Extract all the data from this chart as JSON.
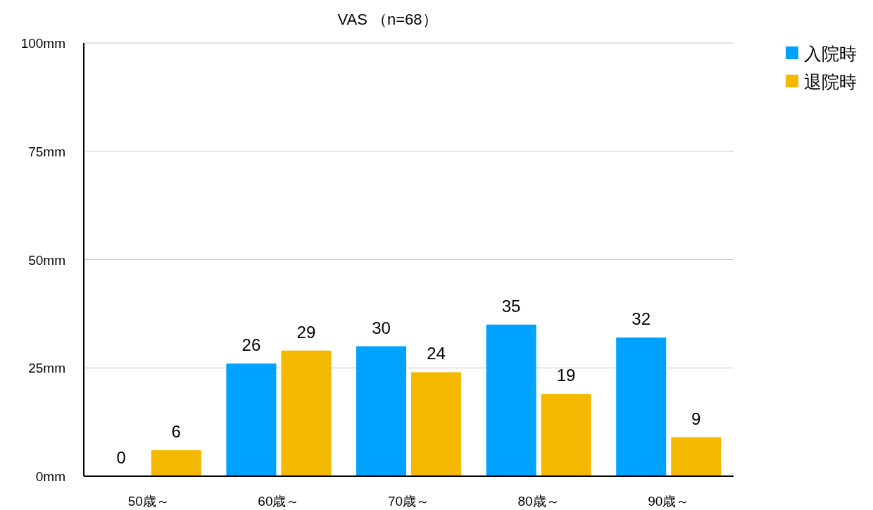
{
  "chart_data": {
    "type": "bar",
    "title": "VAS （n=68）",
    "categories": [
      "50歳～",
      "60歳～",
      "70歳～",
      "80歳～",
      "90歳～"
    ],
    "series": [
      {
        "name": "入院時",
        "color": "#00a2ff",
        "values": [
          0,
          26,
          30,
          35,
          32
        ]
      },
      {
        "name": "退院時",
        "color": "#f5b800",
        "values": [
          6,
          29,
          24,
          19,
          9
        ]
      }
    ],
    "ylim": [
      0,
      100
    ],
    "yticks": [
      {
        "value": 0,
        "label": "0mm"
      },
      {
        "value": 25,
        "label": "25mm"
      },
      {
        "value": 50,
        "label": "50mm"
      },
      {
        "value": 75,
        "label": "75mm"
      },
      {
        "value": 100,
        "label": "100mm"
      }
    ],
    "grid": "y",
    "legend": "top right",
    "data_labels": true
  }
}
